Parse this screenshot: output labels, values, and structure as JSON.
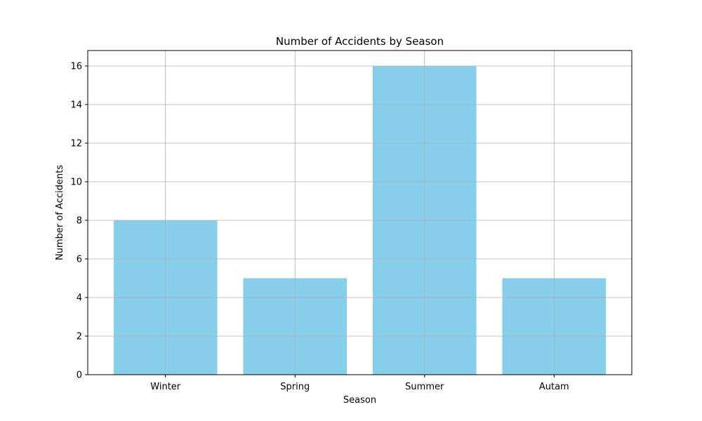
{
  "chart_data": {
    "type": "bar",
    "title": "Number of Accidents by Season",
    "xlabel": "Season",
    "ylabel": "Number of Accidents",
    "categories": [
      "Winter",
      "Spring",
      "Summer",
      "Autam"
    ],
    "values": [
      8,
      5,
      16,
      5
    ],
    "ylim": [
      0,
      16.8
    ],
    "yticks": [
      0,
      2,
      4,
      6,
      8,
      10,
      12,
      14,
      16
    ],
    "grid": true,
    "legend": "none",
    "colors": {
      "bar": "#87CEEB",
      "grid": "#b0b0b0",
      "axes": "#000000",
      "text": "#000000",
      "background": "#ffffff"
    }
  }
}
